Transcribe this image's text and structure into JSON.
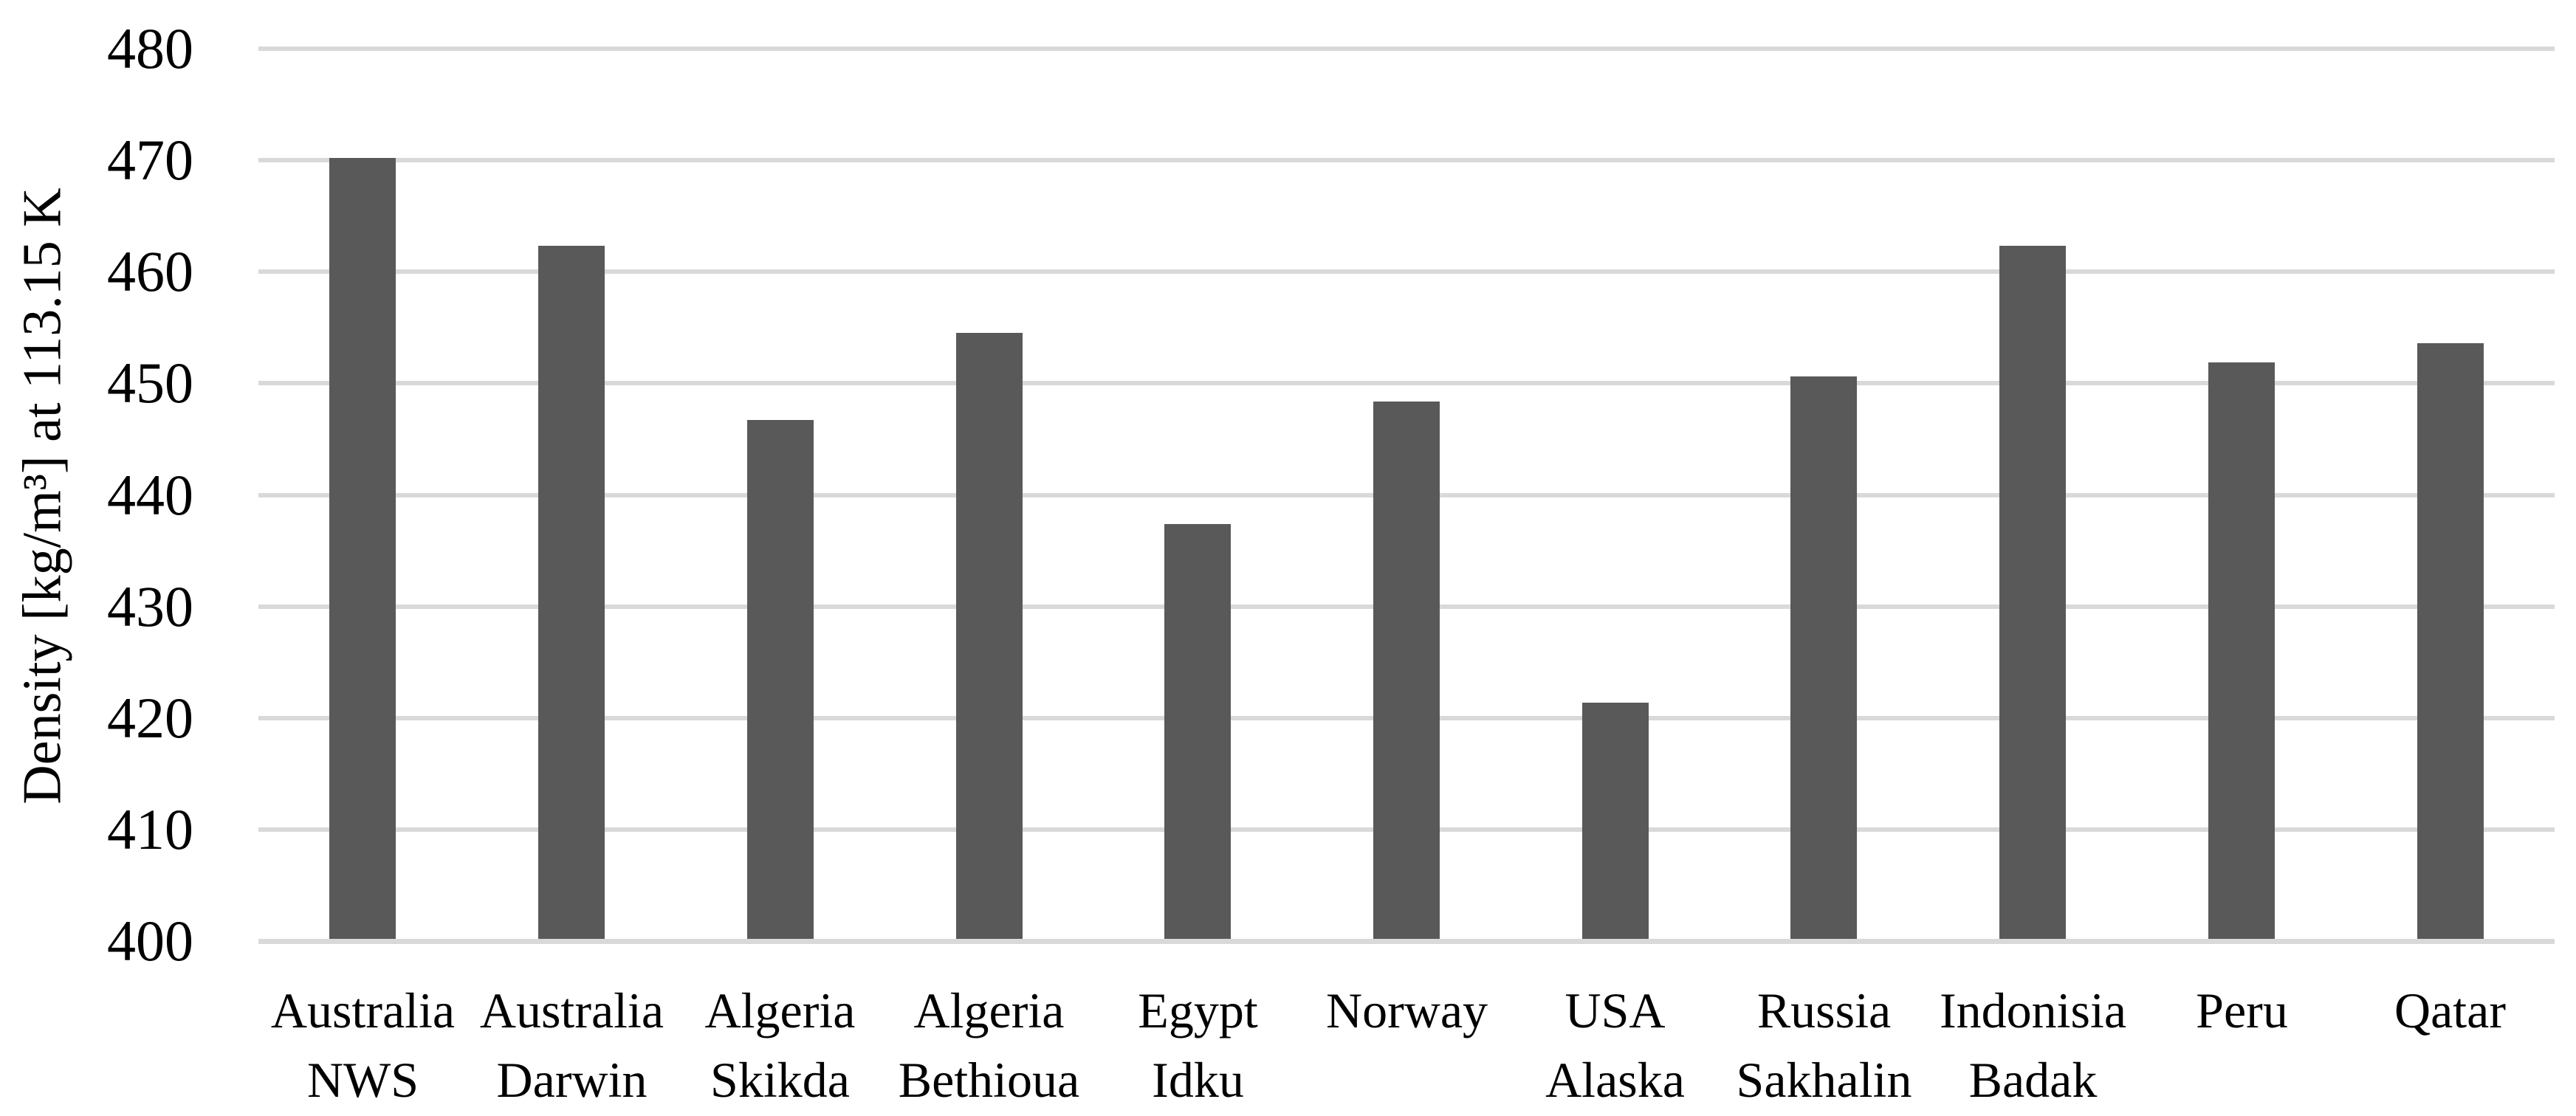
{
  "chart_data": {
    "type": "bar",
    "title": "",
    "xlabel": "",
    "ylabel": "Density [kg/m³] at 113.15 K",
    "ylim": [
      400,
      480
    ],
    "yticks": [
      400,
      410,
      420,
      430,
      440,
      450,
      460,
      470,
      480
    ],
    "grid": true,
    "legend_position": "none",
    "bar_color": "#595959",
    "gridline_color": "#D9D9D9",
    "categories": [
      {
        "line1": "Australia",
        "line2": "NWS"
      },
      {
        "line1": "Australia",
        "line2": "Darwin"
      },
      {
        "line1": "Algeria",
        "line2": "Skikda"
      },
      {
        "line1": "Algeria",
        "line2": "Bethioua"
      },
      {
        "line1": "Egypt",
        "line2": "Idku"
      },
      {
        "line1": "Norway",
        "line2": ""
      },
      {
        "line1": "USA",
        "line2": "Alaska"
      },
      {
        "line1": "Russia",
        "line2": "Sakhalin"
      },
      {
        "line1": "Indonisia",
        "line2": "Badak"
      },
      {
        "line1": "Peru",
        "line2": ""
      },
      {
        "line1": "Qatar",
        "line2": ""
      }
    ],
    "series": [
      {
        "name": "Density at 113.15 K",
        "values": [
          470.2,
          462.3,
          446.7,
          454.5,
          437.4,
          448.4,
          421.4,
          450.6,
          462.3,
          451.9,
          453.6
        ]
      }
    ]
  }
}
